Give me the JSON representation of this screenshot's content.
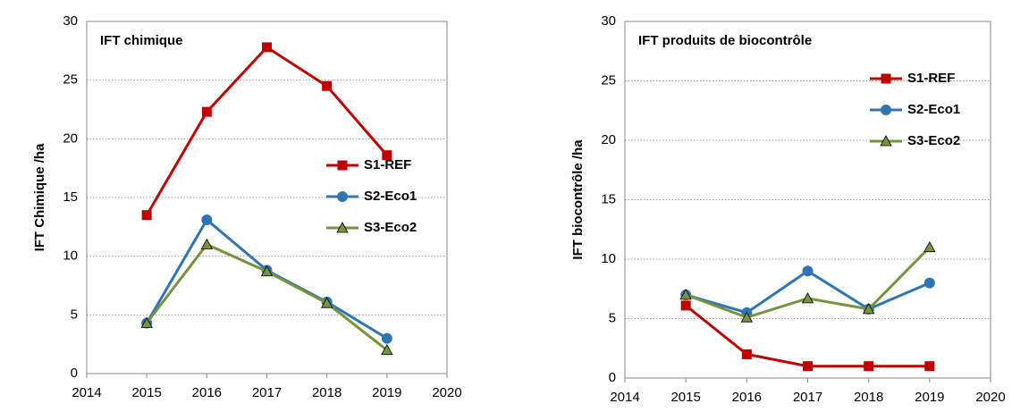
{
  "chart_data": [
    {
      "type": "line",
      "title": "IFT chimique",
      "ylabel": "IFT Chimique /ha",
      "x": [
        2015,
        2016,
        2017,
        2018,
        2019
      ],
      "series": [
        {
          "name": "S1-REF",
          "color": "#c00000",
          "marker": "square",
          "values": [
            13.5,
            22.3,
            27.8,
            24.5,
            18.6
          ]
        },
        {
          "name": "S2-Eco1",
          "color": "#2e75b6",
          "marker": "circle",
          "values": [
            4.3,
            13.1,
            8.8,
            6.1,
            3.0
          ]
        },
        {
          "name": "S3-Eco2",
          "color": "#77933c",
          "marker": "triangle",
          "values": [
            4.3,
            11.0,
            8.7,
            6.0,
            2.0
          ]
        }
      ],
      "xlim": [
        2014,
        2020
      ],
      "xticks": [
        2014,
        2015,
        2016,
        2017,
        2018,
        2019,
        2020
      ],
      "ylim": [
        0,
        30
      ],
      "yticks": [
        0,
        5,
        10,
        15,
        20,
        25,
        30
      ],
      "grid": true,
      "legend": "center right"
    },
    {
      "type": "line",
      "title": "IFT produits de biocontrôle",
      "ylabel": "IFT biocontrôle /ha",
      "x": [
        2015,
        2016,
        2017,
        2018,
        2019
      ],
      "series": [
        {
          "name": "S1-REF",
          "color": "#c00000",
          "marker": "square",
          "values": [
            6.1,
            2.0,
            1.0,
            1.0,
            1.0
          ]
        },
        {
          "name": "S2-Eco1",
          "color": "#2e75b6",
          "marker": "circle",
          "values": [
            7.0,
            5.5,
            9.0,
            5.8,
            8.0
          ]
        },
        {
          "name": "S3-Eco2",
          "color": "#77933c",
          "marker": "triangle",
          "values": [
            7.0,
            5.1,
            6.7,
            5.8,
            11.0
          ]
        }
      ],
      "xlim": [
        2014,
        2020
      ],
      "xticks": [
        2014,
        2015,
        2016,
        2017,
        2018,
        2019,
        2020
      ],
      "ylim": [
        0,
        30
      ],
      "yticks": [
        0,
        5,
        10,
        15,
        20,
        25,
        30
      ],
      "grid": true,
      "legend": "upper right"
    }
  ]
}
